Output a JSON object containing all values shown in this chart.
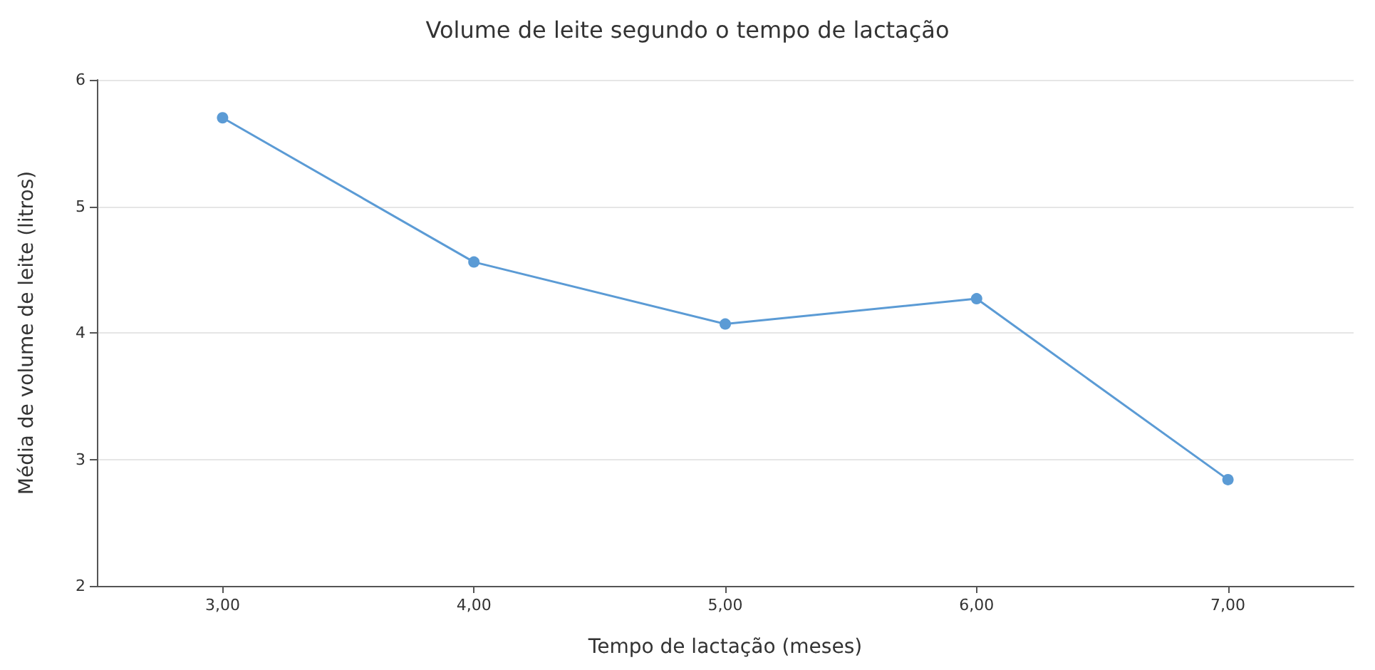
{
  "chart_data": {
    "type": "line",
    "title": "Volume de leite segundo o tempo de lactação",
    "xlabel": "Tempo de lactação (meses)",
    "ylabel": "Média de volume de leite (litros)",
    "categories": [
      "3,00",
      "4,00",
      "5,00",
      "6,00",
      "7,00"
    ],
    "series": [
      {
        "color": "#5b9bd5",
        "values": [
          5.7,
          4.56,
          4.07,
          4.27,
          2.84
        ]
      }
    ],
    "ylim": [
      2,
      6
    ],
    "yticks": [
      2,
      3,
      4,
      5,
      6
    ],
    "grid": "y",
    "marker": "circle",
    "line_style": "solid"
  }
}
